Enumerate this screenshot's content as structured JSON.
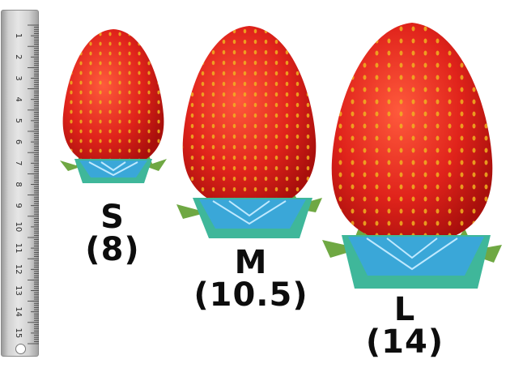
{
  "ruler": {
    "numbers": [
      "1",
      "2",
      "3",
      "4",
      "5",
      "6",
      "7",
      "8",
      "9",
      "10",
      "11",
      "12",
      "13",
      "14",
      "15"
    ]
  },
  "strawberries": [
    {
      "size": "S",
      "value": "(8)"
    },
    {
      "size": "M",
      "value": "(10.5)"
    },
    {
      "size": "L",
      "value": "(14)"
    }
  ],
  "colors": {
    "berry_red": "#e0231b",
    "seed": "#f0b020",
    "leaf": "#6fa843",
    "gem_blue": "#3aa7d8",
    "base_teal": "#3fb79a",
    "text": "#0d0d0d"
  }
}
